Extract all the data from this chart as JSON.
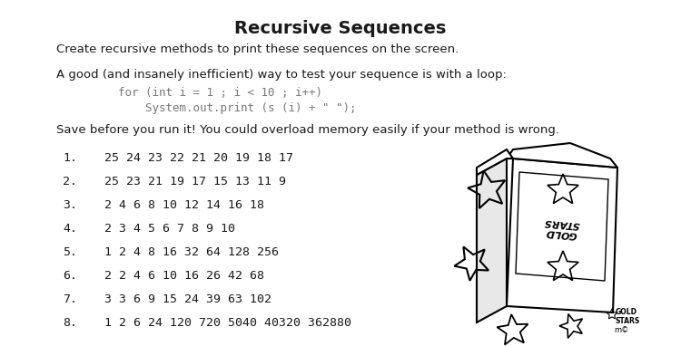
{
  "title": "Recursive Sequences",
  "title_fontsize": 14,
  "title_fontweight": "bold",
  "bg_color": "#ffffff",
  "body_text_color": "#1a1a1a",
  "code_color": "#777777",
  "paragraph1": "Create recursive methods to print these sequences on the screen.",
  "paragraph2": "A good (and insanely inefficient) way to test your sequence is with a loop:",
  "code_line1": "for (int i = 1 ; i < 10 ; i++)",
  "code_line2": "System.out.print (s (i) + \" \");",
  "paragraph3": "Save before you run it! You could overload memory easily if your method is wrong.",
  "sequences": [
    {
      "num": "1.",
      "seq": "25 24 23 22 21 20 19 18 17"
    },
    {
      "num": "2.",
      "seq": "25 23 21 19 17 15 13 11 9"
    },
    {
      "num": "3.",
      "seq": "2 4 6 8 10 12 14 16 18"
    },
    {
      "num": "4.",
      "seq": "2 3 4 5 6 7 8 9 10"
    },
    {
      "num": "5.",
      "seq": "1 2 4 8 16 32 64 128 256"
    },
    {
      "num": "6.",
      "seq": "2 2 4 6 10 16 26 42 68"
    },
    {
      "num": "7.",
      "seq": "3 3 6 9 15 24 39 63 102"
    },
    {
      "num": "8.",
      "seq": "1 2 6 24 120 720 5040 40320 362880"
    }
  ],
  "seq_fontsize": 9.5,
  "body_fontsize": 9.5,
  "code_fontsize": 9.0
}
